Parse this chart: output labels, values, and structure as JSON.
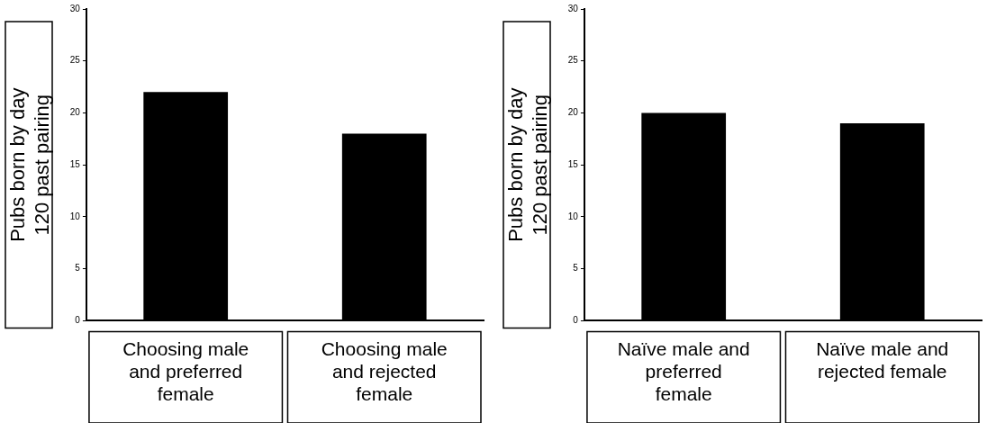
{
  "chart_data": [
    {
      "type": "bar",
      "ylabel": "Pubs born by day 120 past pairing",
      "categories": [
        "Choosing male and preferred female",
        "Choosing male and rejected female"
      ],
      "values": [
        22,
        18
      ],
      "color": "#000000",
      "ylim": [
        0,
        30
      ],
      "yticks": [
        0,
        5,
        10,
        15,
        20,
        25,
        30
      ],
      "grid": false,
      "legend": false
    },
    {
      "type": "bar",
      "ylabel": "Pubs born by day 120 past pairing",
      "categories": [
        "Naïve male and preferred female",
        "Naïve male and rejected female"
      ],
      "values": [
        20,
        19
      ],
      "color": "#000000",
      "ylim": [
        0,
        30
      ],
      "yticks": [
        0,
        5,
        10,
        15,
        20,
        25,
        30
      ],
      "grid": false,
      "legend": false
    }
  ]
}
